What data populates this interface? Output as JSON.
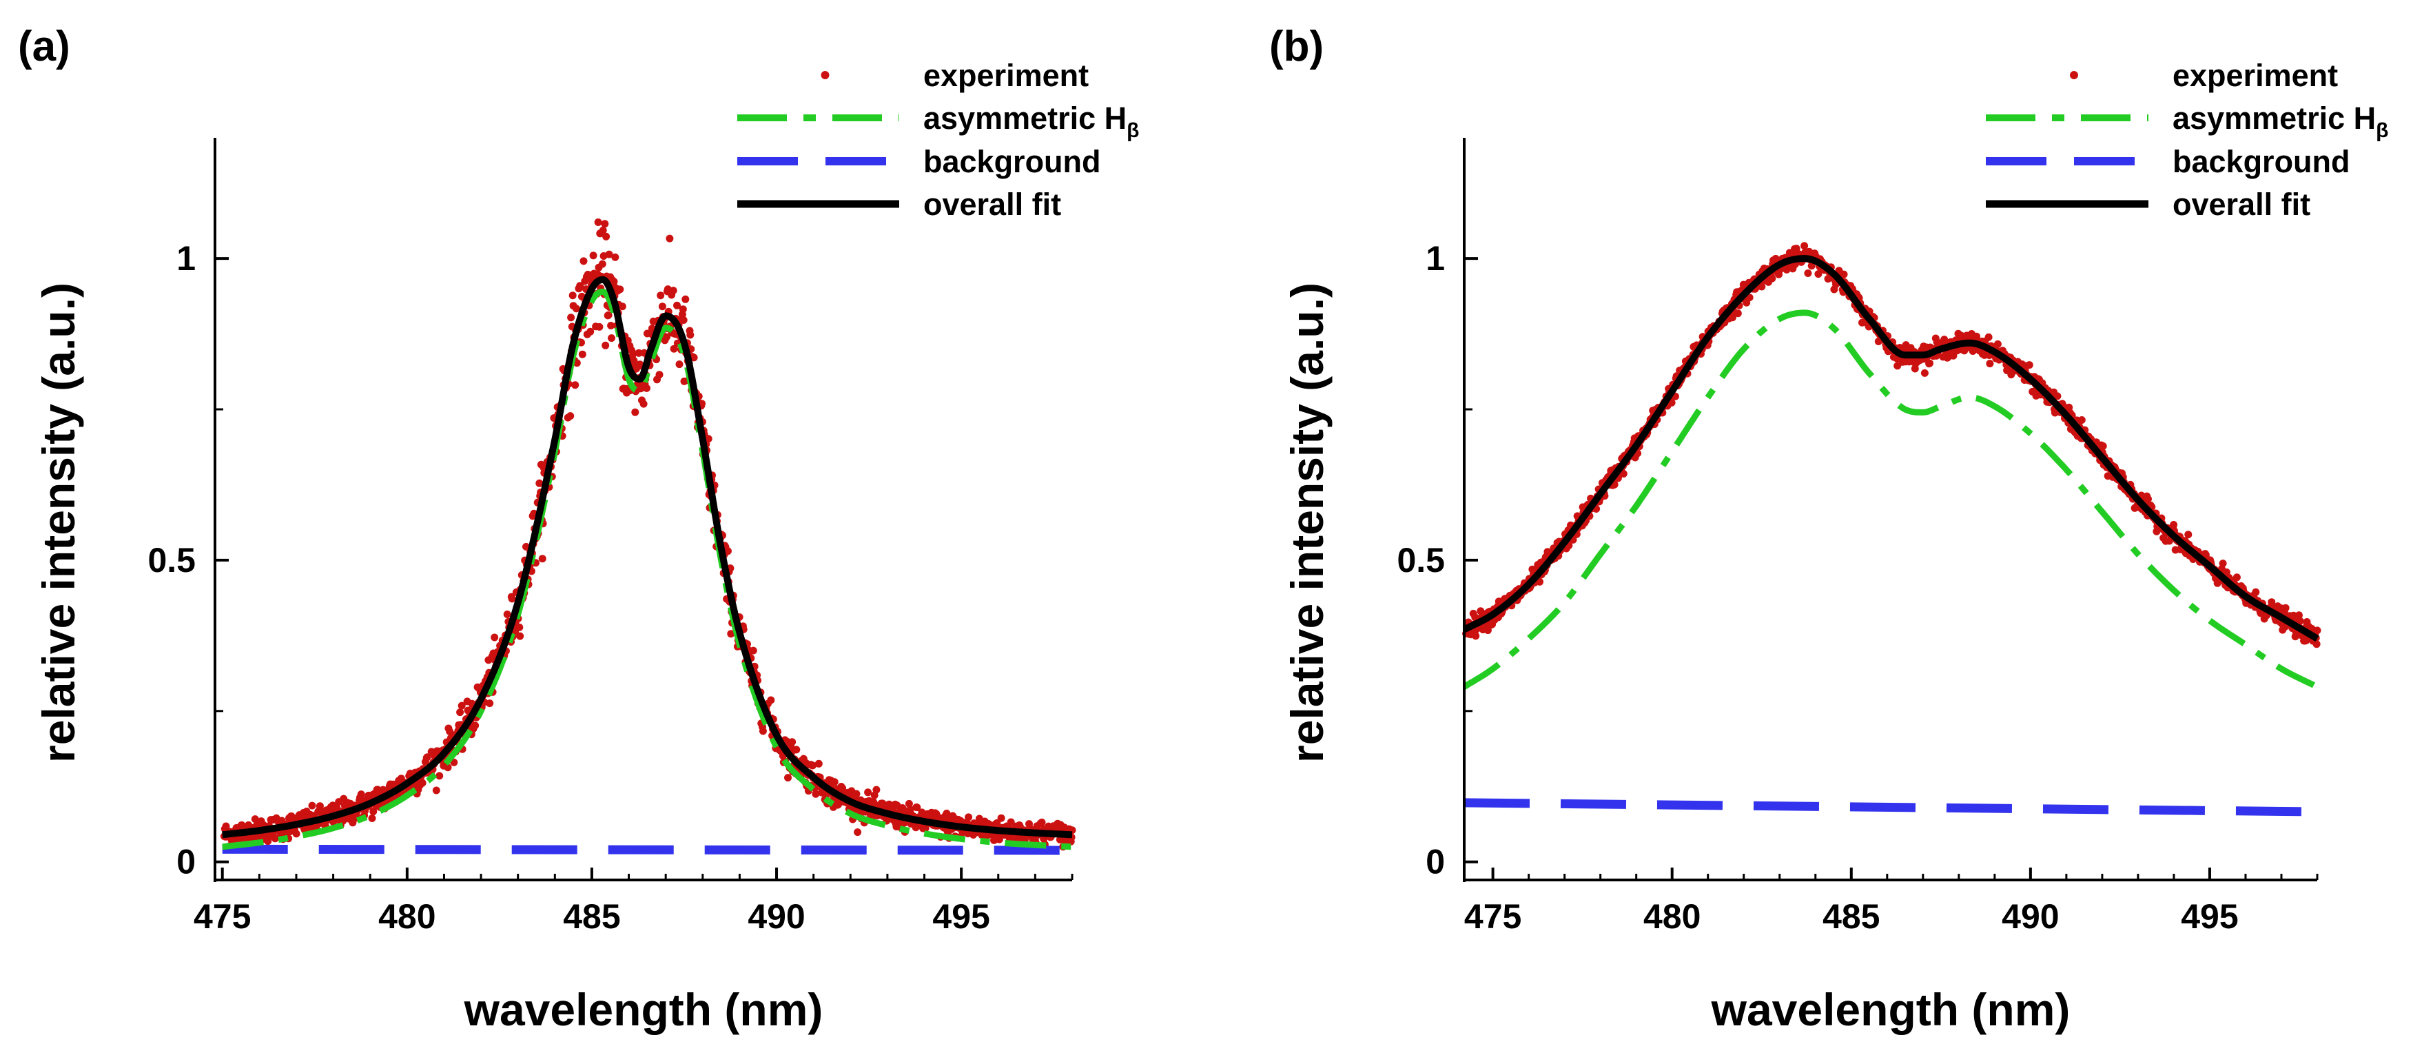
{
  "chart_data": [
    {
      "type": "line",
      "panel_label": "(a)",
      "xlabel": "wavelength (nm)",
      "ylabel": "relative intensity (a.u.)",
      "xlim": [
        474.8,
        498.0
      ],
      "ylim": [
        -0.03,
        1.2
      ],
      "xticks": [
        475,
        480,
        485,
        490,
        495
      ],
      "yticks": [
        0,
        0.5,
        1
      ],
      "ytick_labels": [
        "0",
        "0.5",
        "1"
      ],
      "yminor_ticks": [
        0.25,
        0.75
      ],
      "grid": false,
      "legend_position": "top-right",
      "legend": [
        {
          "label": "experiment",
          "style": "dots"
        },
        {
          "label": "asymmetric H",
          "subscript": "β",
          "style": "dash-dot"
        },
        {
          "label": "background",
          "style": "dash"
        },
        {
          "label": "overall fit",
          "style": "solid"
        }
      ],
      "colors": {
        "experiment": "#cc1111",
        "asymmetric": "#22cc22",
        "background": "#3333ee",
        "fit": "#000000"
      },
      "series": [
        {
          "name": "overall fit",
          "x": [
            475,
            476,
            477,
            478,
            479,
            480,
            481,
            482,
            483,
            484,
            484.5,
            485,
            485.3,
            485.6,
            486,
            486.3,
            486.6,
            487,
            487.5,
            488,
            488.5,
            489,
            490,
            491,
            492,
            493,
            494,
            495,
            496,
            497,
            498
          ],
          "y": [
            0.045,
            0.052,
            0.062,
            0.076,
            0.097,
            0.13,
            0.18,
            0.27,
            0.43,
            0.7,
            0.86,
            0.95,
            0.965,
            0.93,
            0.82,
            0.8,
            0.85,
            0.905,
            0.86,
            0.7,
            0.52,
            0.38,
            0.21,
            0.14,
            0.1,
            0.08,
            0.067,
            0.058,
            0.052,
            0.048,
            0.045
          ]
        },
        {
          "name": "asymmetric Hβ",
          "x": [
            475,
            476,
            477,
            478,
            479,
            480,
            481,
            482,
            483,
            484,
            484.5,
            485,
            485.3,
            485.6,
            486,
            486.3,
            486.6,
            487,
            487.5,
            488,
            488.5,
            489,
            490,
            491,
            492,
            493,
            494,
            495,
            496,
            497,
            498
          ],
          "y": [
            0.025,
            0.032,
            0.042,
            0.056,
            0.077,
            0.11,
            0.16,
            0.25,
            0.41,
            0.68,
            0.84,
            0.93,
            0.945,
            0.91,
            0.8,
            0.78,
            0.83,
            0.885,
            0.84,
            0.68,
            0.5,
            0.36,
            0.19,
            0.12,
            0.08,
            0.06,
            0.047,
            0.038,
            0.032,
            0.028,
            0.025
          ]
        },
        {
          "name": "background",
          "x": [
            475,
            498
          ],
          "y": [
            0.021,
            0.019
          ]
        }
      ]
    },
    {
      "type": "line",
      "panel_label": "(b)",
      "xlabel": "wavelength (nm)",
      "ylabel": "relative intensity (a.u.)",
      "xlim": [
        474.2,
        498.0
      ],
      "ylim": [
        -0.03,
        1.2
      ],
      "xticks": [
        475,
        480,
        485,
        490,
        495
      ],
      "yticks": [
        0,
        0.5,
        1
      ],
      "ytick_labels": [
        "0",
        "0.5",
        "1"
      ],
      "yminor_ticks": [
        0.25,
        0.75
      ],
      "grid": false,
      "legend_position": "top-right",
      "legend": [
        {
          "label": "experiment",
          "style": "dots"
        },
        {
          "label": "asymmetric H",
          "subscript": "β",
          "style": "dash-dot"
        },
        {
          "label": "background",
          "style": "dash"
        },
        {
          "label": "overall fit",
          "style": "solid"
        }
      ],
      "colors": {
        "experiment": "#cc1111",
        "asymmetric": "#22cc22",
        "background": "#3333ee",
        "fit": "#000000"
      },
      "series": [
        {
          "name": "overall fit",
          "x": [
            474.2,
            475,
            476,
            477,
            478,
            479,
            480,
            481,
            482,
            483,
            483.7,
            484.5,
            485.5,
            486.5,
            487,
            487.5,
            488.3,
            489,
            490,
            491,
            492,
            493,
            494,
            495,
            496,
            497,
            498
          ],
          "y": [
            0.385,
            0.41,
            0.46,
            0.53,
            0.61,
            0.69,
            0.78,
            0.87,
            0.94,
            0.99,
            1.0,
            0.975,
            0.9,
            0.84,
            0.84,
            0.85,
            0.86,
            0.845,
            0.8,
            0.74,
            0.67,
            0.6,
            0.54,
            0.49,
            0.44,
            0.405,
            0.37
          ]
        },
        {
          "name": "asymmetric Hβ",
          "x": [
            474.2,
            475,
            476,
            477,
            478,
            479,
            480,
            481,
            482,
            483,
            483.7,
            484.5,
            485.5,
            486.5,
            487,
            487.5,
            488.3,
            489,
            490,
            491,
            492,
            493,
            494,
            495,
            496,
            497,
            498
          ],
          "y": [
            0.29,
            0.32,
            0.37,
            0.43,
            0.51,
            0.59,
            0.68,
            0.77,
            0.85,
            0.9,
            0.91,
            0.885,
            0.81,
            0.75,
            0.745,
            0.755,
            0.77,
            0.755,
            0.71,
            0.65,
            0.58,
            0.51,
            0.45,
            0.4,
            0.36,
            0.32,
            0.29
          ]
        },
        {
          "name": "background",
          "x": [
            474.2,
            498
          ],
          "y": [
            0.098,
            0.083
          ]
        }
      ]
    }
  ]
}
